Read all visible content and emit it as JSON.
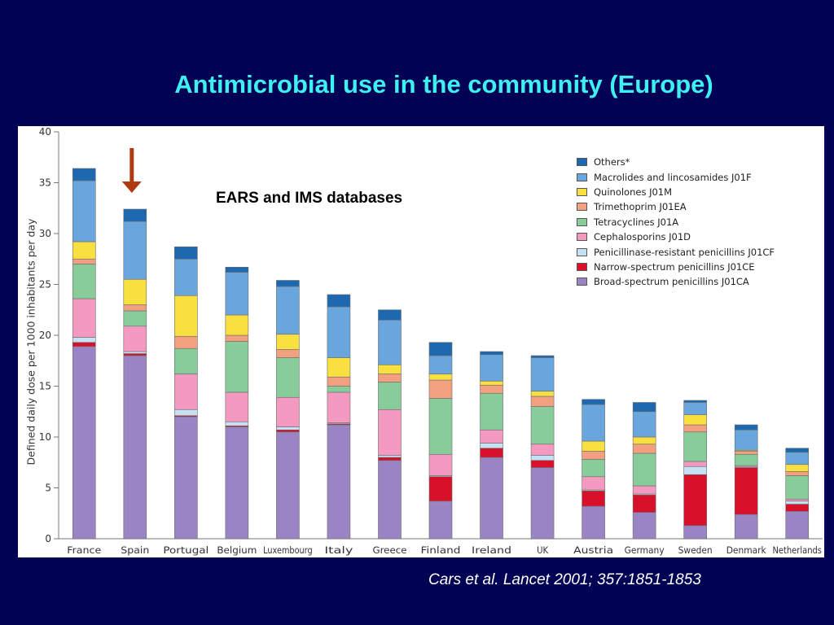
{
  "slide": {
    "title": "Antimicrobial use in the community (Europe)",
    "citation": "Cars et al. Lancet 2001; 357:1851-1853",
    "annotation": "EARS and IMS databases",
    "background_color": "#020255",
    "title_color": "#3ff0f0"
  },
  "chart_data": {
    "type": "bar",
    "stacked": true,
    "ylabel": "Defined daily dose per 1000 inhabitants per day",
    "xlabel": "",
    "ylim": [
      0,
      40
    ],
    "yticks": [
      "0",
      "5",
      "10",
      "15",
      "20",
      "25",
      "30",
      "35",
      "40"
    ],
    "grid": false,
    "legend_position": "top-right",
    "highlight": {
      "category": "Spain",
      "marker": "arrow-down",
      "color": "#b03a10"
    },
    "categories": [
      "France",
      "Spain",
      "Portugal",
      "Belgium",
      "Luxembourg",
      "Italy",
      "Greece",
      "Finland",
      "Ireland",
      "UK",
      "Austria",
      "Germany",
      "Sweden",
      "Denmark",
      "Netherlands"
    ],
    "series": [
      {
        "name": "Broad-spectrum penicillins J01CA",
        "color": "#9a84c4",
        "values": [
          18.9,
          18.0,
          12.0,
          11.0,
          10.5,
          11.2,
          7.7,
          3.7,
          8.0,
          7.0,
          3.2,
          2.6,
          1.3,
          2.4,
          2.7
        ]
      },
      {
        "name": "Narrow-spectrum penicillins J01CE",
        "color": "#d8102a",
        "values": [
          0.4,
          0.2,
          0.1,
          0.1,
          0.2,
          0.1,
          0.3,
          2.4,
          0.9,
          0.7,
          1.5,
          1.7,
          5.0,
          4.6,
          0.7
        ]
      },
      {
        "name": "Penicillinase-resistant penicillins J01CF",
        "color": "#c6e0f4",
        "values": [
          0.5,
          0.2,
          0.6,
          0.4,
          0.3,
          0.1,
          0.2,
          0.1,
          0.5,
          0.5,
          0.1,
          0.1,
          0.8,
          0.1,
          0.3
        ]
      },
      {
        "name": "Cephalosporins J01D",
        "color": "#f49ac0",
        "values": [
          3.8,
          2.5,
          3.5,
          2.9,
          2.9,
          3.0,
          4.5,
          2.1,
          1.3,
          1.1,
          1.3,
          0.8,
          0.5,
          0.1,
          0.2
        ]
      },
      {
        "name": "Tetracyclines J01A",
        "color": "#88cc9a",
        "values": [
          3.4,
          1.5,
          2.5,
          5.0,
          3.9,
          0.6,
          2.7,
          5.5,
          3.6,
          3.7,
          1.7,
          3.2,
          2.9,
          1.1,
          2.3
        ]
      },
      {
        "name": "Trimethoprim J01EA",
        "color": "#f2a080",
        "values": [
          0.5,
          0.6,
          1.2,
          0.6,
          0.8,
          0.9,
          0.8,
          1.8,
          0.8,
          1.0,
          0.8,
          0.9,
          0.7,
          0.3,
          0.4
        ]
      },
      {
        "name": "Quinolones J01M",
        "color": "#f8e040",
        "values": [
          1.7,
          2.5,
          4.0,
          2.0,
          1.5,
          1.9,
          0.9,
          0.6,
          0.4,
          0.5,
          1.0,
          0.7,
          1.0,
          0.1,
          0.7
        ]
      },
      {
        "name": "Macrolides and lincosamides J01F",
        "color": "#6aa6de",
        "values": [
          6.0,
          5.7,
          3.6,
          4.2,
          4.7,
          5.0,
          4.4,
          1.8,
          2.6,
          3.3,
          3.6,
          2.5,
          1.2,
          2.0,
          1.2
        ]
      },
      {
        "name": "Others*",
        "color": "#1e68b0",
        "values": [
          1.2,
          1.2,
          1.2,
          0.5,
          0.6,
          1.2,
          1.0,
          1.3,
          0.3,
          0.2,
          0.5,
          0.9,
          0.2,
          0.5,
          0.4
        ]
      }
    ]
  }
}
